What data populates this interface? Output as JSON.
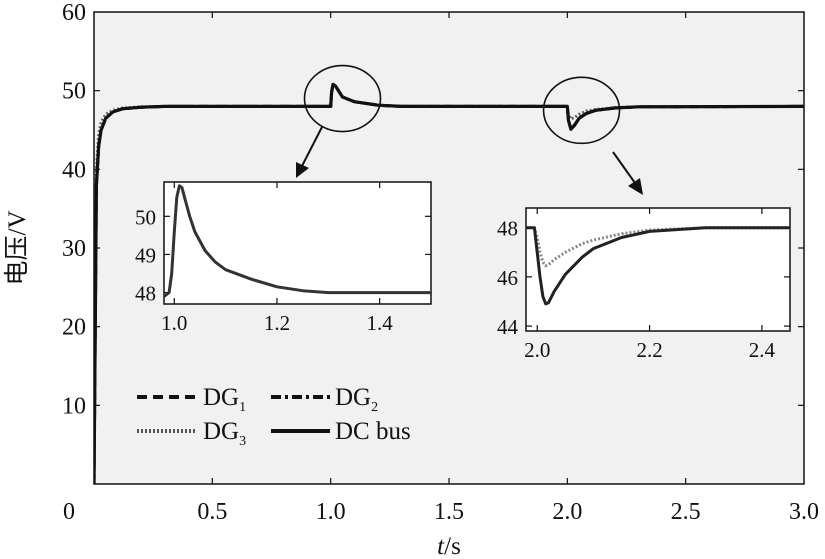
{
  "chart_data": [
    {
      "id": "main",
      "type": "line",
      "xlabel": {
        "italic": "t",
        "rest": "/s"
      },
      "ylabel": "电压/V",
      "xlim": [
        0,
        3.0
      ],
      "ylim": [
        0,
        60
      ],
      "xticks": [
        0,
        0.5,
        1.0,
        1.5,
        2.0,
        2.5,
        3.0
      ],
      "xtick_labels": [
        "0",
        "0.5",
        "1.0",
        "1.5",
        "2.0",
        "2.5",
        "3.0"
      ],
      "yticks": [
        10,
        20,
        30,
        40,
        50,
        60
      ],
      "ytick_labels": [
        "10",
        "20",
        "30",
        "40",
        "50",
        "60"
      ],
      "grid": false,
      "legend_position": "lower-left",
      "series": [
        {
          "name": "DG",
          "sub": "1",
          "style": "dashed",
          "x": [
            0,
            0.01,
            0.02,
            0.03,
            0.05,
            0.08,
            0.12,
            0.2,
            0.3,
            0.5,
            1.0,
            1.004,
            1.01,
            1.02,
            1.05,
            1.1,
            1.2,
            1.3,
            1.5,
            2.0,
            2.005,
            2.015,
            2.03,
            2.05,
            2.08,
            2.12,
            2.2,
            2.3,
            3.0
          ],
          "y": [
            0,
            38,
            43,
            45,
            46.5,
            47.3,
            47.7,
            47.9,
            48,
            48,
            48,
            49.8,
            50.8,
            50.6,
            49.2,
            48.6,
            48.15,
            48,
            48,
            48,
            46.2,
            45.1,
            45.6,
            46.5,
            47.1,
            47.5,
            47.8,
            47.95,
            48
          ]
        },
        {
          "name": "DG",
          "sub": "2",
          "style": "dash-dot",
          "x": [
            0,
            0.01,
            0.02,
            0.03,
            0.05,
            0.08,
            0.12,
            0.2,
            0.3,
            0.5,
            1.0,
            1.004,
            1.01,
            1.02,
            1.05,
            1.1,
            1.2,
            1.3,
            1.5,
            2.0,
            2.005,
            2.015,
            2.03,
            2.05,
            2.08,
            2.12,
            2.2,
            2.3,
            3.0
          ],
          "y": [
            0,
            38,
            43,
            45,
            46.5,
            47.3,
            47.7,
            47.9,
            48,
            48,
            48,
            49.8,
            50.8,
            50.6,
            49.2,
            48.6,
            48.15,
            48,
            48,
            48,
            46.2,
            45.1,
            45.6,
            46.5,
            47.1,
            47.5,
            47.8,
            47.95,
            48
          ]
        },
        {
          "name": "DG",
          "sub": "3",
          "style": "dotted",
          "x": [
            0,
            0.01,
            0.02,
            0.03,
            0.05,
            0.08,
            0.12,
            0.2,
            0.3,
            0.5,
            1.0,
            1.004,
            1.01,
            1.02,
            1.05,
            1.1,
            1.2,
            1.3,
            1.5,
            2.0,
            2.005,
            2.015,
            2.03,
            2.05,
            2.08,
            2.12,
            2.2,
            2.3,
            3.0
          ],
          "y": [
            0,
            40,
            44.5,
            46,
            47,
            47.5,
            47.8,
            47.95,
            48,
            48,
            48,
            49.8,
            50.8,
            50.6,
            49.2,
            48.6,
            48.15,
            48,
            48,
            48,
            46.9,
            46.4,
            46.6,
            47.0,
            47.4,
            47.6,
            47.85,
            47.95,
            48
          ]
        },
        {
          "name": "DC bus",
          "style": "solid",
          "x": [
            0,
            0.01,
            0.02,
            0.03,
            0.05,
            0.08,
            0.12,
            0.2,
            0.3,
            0.5,
            1.0,
            1.004,
            1.01,
            1.02,
            1.05,
            1.1,
            1.2,
            1.3,
            1.5,
            2.0,
            2.005,
            2.015,
            2.03,
            2.05,
            2.08,
            2.12,
            2.2,
            2.3,
            3.0
          ],
          "y": [
            0,
            38,
            43,
            45,
            46.5,
            47.3,
            47.7,
            47.9,
            48,
            48,
            48,
            49.8,
            50.8,
            50.6,
            49.2,
            48.6,
            48.15,
            48,
            48,
            48,
            46.2,
            45.1,
            45.6,
            46.5,
            47.1,
            47.5,
            47.8,
            47.95,
            48
          ]
        }
      ],
      "highlights": [
        {
          "x_center": 1.05,
          "y_center": 49
        },
        {
          "x_center": 2.06,
          "y_center": 47.5
        }
      ]
    },
    {
      "id": "inset1",
      "type": "line",
      "xlim": [
        0.98,
        1.5
      ],
      "ylim": [
        47.7,
        50.9
      ],
      "xticks": [
        1.0,
        1.2,
        1.4
      ],
      "xtick_labels": [
        "1.0",
        "1.2",
        "1.4"
      ],
      "yticks": [
        48,
        49,
        50
      ],
      "ytick_labels": [
        "48",
        "49",
        "50"
      ],
      "series": [
        {
          "name": "DC bus",
          "x": [
            0.98,
            0.99,
            0.995,
            1.0,
            1.005,
            1.01,
            1.015,
            1.02,
            1.03,
            1.04,
            1.06,
            1.08,
            1.1,
            1.15,
            1.2,
            1.25,
            1.3,
            1.4,
            1.5
          ],
          "y": [
            47.9,
            48.0,
            48.5,
            49.6,
            50.5,
            50.8,
            50.75,
            50.5,
            50.0,
            49.6,
            49.1,
            48.8,
            48.6,
            48.35,
            48.15,
            48.05,
            48.0,
            48.0,
            48.0
          ]
        }
      ]
    },
    {
      "id": "inset2",
      "type": "line",
      "xlim": [
        1.98,
        2.45
      ],
      "ylim": [
        43.8,
        48.8
      ],
      "xticks": [
        2.0,
        2.2,
        2.4
      ],
      "xtick_labels": [
        "2.0",
        "2.2",
        "2.4"
      ],
      "yticks": [
        44,
        46,
        48
      ],
      "ytick_labels": [
        "44",
        "46",
        "48"
      ],
      "series": [
        {
          "name": "DG",
          "sub": "3",
          "x": [
            1.98,
            1.995,
            2.0,
            2.005,
            2.01,
            2.015,
            2.02,
            2.03,
            2.05,
            2.08,
            2.1,
            2.15,
            2.2,
            2.3,
            2.45
          ],
          "y": [
            48.0,
            48.0,
            47.6,
            47.0,
            46.6,
            46.45,
            46.5,
            46.7,
            47.0,
            47.35,
            47.5,
            47.75,
            47.9,
            48.0,
            48.0
          ]
        },
        {
          "name": "DC bus",
          "x": [
            1.98,
            1.995,
            2.0,
            2.005,
            2.01,
            2.015,
            2.02,
            2.03,
            2.05,
            2.08,
            2.1,
            2.15,
            2.2,
            2.3,
            2.45
          ],
          "y": [
            48.0,
            48.0,
            47.0,
            46.0,
            45.2,
            44.9,
            44.95,
            45.4,
            46.1,
            46.8,
            47.15,
            47.6,
            47.85,
            48.0,
            48.0
          ]
        }
      ]
    }
  ]
}
